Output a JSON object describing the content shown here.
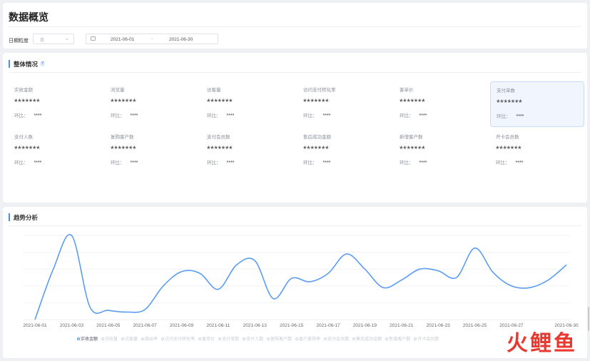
{
  "page_title": "数据概览",
  "filters": {
    "granularity_label": "日期粒度",
    "granularity_value": "日",
    "date_start": "2021-06-01",
    "date_sep": "-",
    "date_end": "2021-06-30"
  },
  "overview": {
    "title": "整体情况",
    "help": "?",
    "change_label": "环比：",
    "metrics": [
      {
        "label": "实收金额",
        "value": "*******",
        "change": "****"
      },
      {
        "label": "浏览量",
        "value": "*******",
        "change": "****"
      },
      {
        "label": "访客量",
        "value": "*******",
        "change": "****"
      },
      {
        "label": "访问支付转化率",
        "value": "*******",
        "change": "****"
      },
      {
        "label": "客单价",
        "value": "*******",
        "change": "****"
      },
      {
        "label": "支付单数",
        "value": "*******",
        "change": "****"
      },
      {
        "label": "支付人数",
        "value": "*******",
        "change": "****"
      },
      {
        "label": "复购客户数",
        "value": "*******",
        "change": "****"
      },
      {
        "label": "支付会员数",
        "value": "*******",
        "change": "****"
      },
      {
        "label": "售后成功金额",
        "value": "*******",
        "change": "****"
      },
      {
        "label": "新增客户数",
        "value": "*******",
        "change": "****"
      },
      {
        "label": "开卡会员数",
        "value": "*******",
        "change": "****"
      }
    ],
    "selected_index": 5
  },
  "trend": {
    "title": "趋势分析",
    "legend": [
      "实收金额",
      "浏览量",
      "访客量",
      "跳出率",
      "访问支付转化率",
      "客单价",
      "支付单数",
      "支付人数",
      "复购客户数",
      "客户复购率",
      "支付会员数",
      "售后成功金额",
      "新增客户数",
      "开卡会员数"
    ],
    "active_legend": 0
  },
  "chart_data": {
    "type": "line",
    "x": [
      "2021-06-01",
      "2021-06-02",
      "2021-06-03",
      "2021-06-04",
      "2021-06-05",
      "2021-06-06",
      "2021-06-07",
      "2021-06-08",
      "2021-06-09",
      "2021-06-10",
      "2021-06-11",
      "2021-06-12",
      "2021-06-13",
      "2021-06-14",
      "2021-06-15",
      "2021-06-16",
      "2021-06-17",
      "2021-06-18",
      "2021-06-19",
      "2021-06-20",
      "2021-06-21",
      "2021-06-22",
      "2021-06-23",
      "2021-06-24",
      "2021-06-25",
      "2021-06-26",
      "2021-06-27",
      "2021-06-28",
      "2021-06-29",
      "2021-06-30"
    ],
    "x_ticks": [
      "2021-06-01",
      "2021-06-03",
      "2021-06-05",
      "2021-06-07",
      "2021-06-09",
      "2021-06-11",
      "2021-06-13",
      "2021-06-15",
      "2021-06-17",
      "2021-06-19",
      "2021-06-21",
      "2021-06-23",
      "2021-06-25",
      "2021-06-27",
      "2021-06-30"
    ],
    "series": [
      {
        "name": "实收金额",
        "values": [
          0,
          60,
          100,
          15,
          11,
          9,
          12,
          40,
          57,
          55,
          36,
          65,
          70,
          25,
          49,
          45,
          55,
          78,
          60,
          38,
          47,
          60,
          58,
          50,
          85,
          56,
          40,
          38,
          47,
          65
        ]
      }
    ],
    "ylim": [
      0,
      100
    ],
    "grid": true,
    "legend_position": "bottom"
  },
  "watermark": "火鲤鱼",
  "colors": {
    "accent": "#4a8df0",
    "line": "#5b9cf2",
    "watermark": "#e8382f"
  }
}
